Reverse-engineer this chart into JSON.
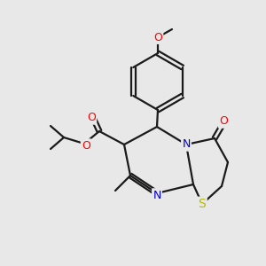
{
  "background_color": "#e8e8e8",
  "bond_color": "#1a1a1a",
  "atom_colors": {
    "O": "#ff0000",
    "N": "#0000cc",
    "S": "#b8b800",
    "C": "#1a1a1a"
  },
  "figsize": [
    3.0,
    3.0
  ],
  "dpi": 100
}
